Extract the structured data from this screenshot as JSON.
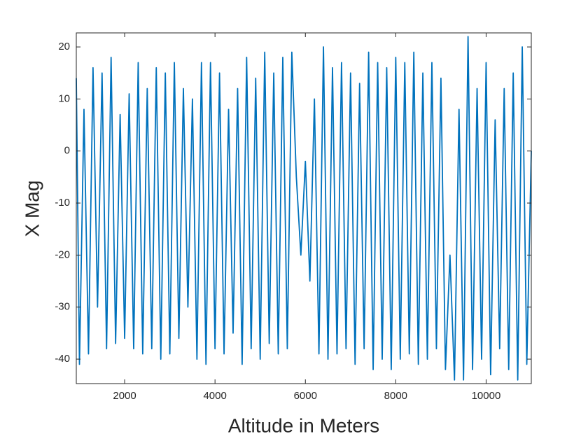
{
  "chart_data": {
    "type": "line",
    "xlabel": "Altitude in Meters",
    "ylabel": "X Mag",
    "x": [
      930,
      1000,
      1100,
      1200,
      1300,
      1400,
      1500,
      1600,
      1700,
      1800,
      1900,
      2000,
      2100,
      2200,
      2300,
      2400,
      2500,
      2600,
      2700,
      2800,
      2900,
      3000,
      3100,
      3200,
      3300,
      3400,
      3500,
      3600,
      3700,
      3800,
      3900,
      4000,
      4100,
      4200,
      4300,
      4400,
      4500,
      4600,
      4700,
      4800,
      4900,
      5000,
      5100,
      5200,
      5300,
      5400,
      5500,
      5600,
      5700,
      5800,
      5900,
      6000,
      6100,
      6200,
      6300,
      6400,
      6500,
      6600,
      6700,
      6800,
      6900,
      7000,
      7100,
      7200,
      7300,
      7400,
      7500,
      7600,
      7700,
      7800,
      7900,
      8000,
      8100,
      8200,
      8300,
      8400,
      8500,
      8600,
      8700,
      8800,
      8900,
      9000,
      9100,
      9200,
      9300,
      9400,
      9500,
      9600,
      9700,
      9800,
      9900,
      10000,
      10100,
      10200,
      10300,
      10400,
      10500,
      10600,
      10700,
      10800,
      10900,
      11000
    ],
    "series": [
      {
        "color": "#0072bd",
        "values": [
          14,
          -41,
          8,
          -39,
          16,
          -30,
          15,
          -38,
          18,
          -37,
          7,
          -36,
          11,
          -38,
          17,
          -39,
          12,
          -38,
          16,
          -40,
          15,
          -39,
          17,
          -36,
          12,
          -30,
          10,
          -40,
          17,
          -41,
          17,
          -38,
          15,
          -39,
          8,
          -35,
          12,
          -41,
          18,
          -38,
          14,
          -40,
          19,
          -37,
          15,
          -39,
          18,
          -38,
          19,
          -5,
          -20,
          -2,
          -25,
          10,
          -39,
          20,
          -40,
          16,
          -39,
          17,
          -38,
          15,
          -41,
          13,
          -38,
          19,
          -42,
          17,
          -40,
          16,
          -42,
          18,
          -40,
          17,
          -39,
          19,
          -41,
          15,
          -40,
          17,
          -38,
          14,
          -42,
          -20,
          -44,
          8,
          -44,
          22,
          -42,
          12,
          -40,
          17,
          -43,
          6,
          -38,
          12,
          -42,
          15,
          -44,
          20,
          -41,
          0
        ]
      }
    ],
    "xlim": [
      930,
      11000
    ],
    "ylim": [
      -44.7,
      22.7
    ],
    "xticks": [
      2000,
      4000,
      6000,
      8000,
      10000
    ],
    "yticks": [
      -40,
      -30,
      -20,
      -10,
      0,
      10,
      20
    ]
  }
}
